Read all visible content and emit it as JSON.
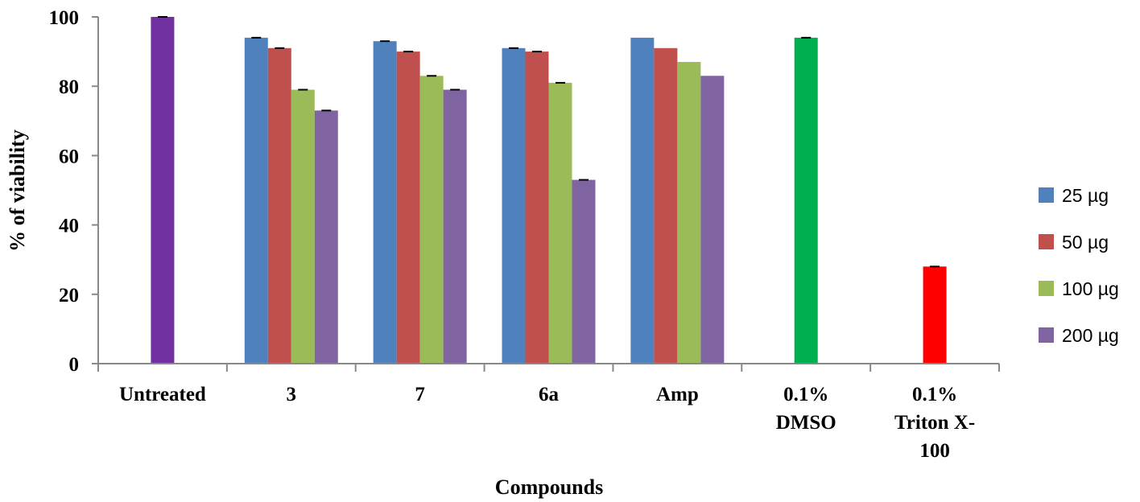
{
  "chart_data": {
    "type": "bar",
    "xlabel": "Compounds",
    "ylabel": "% of viability",
    "ylim": [
      0,
      100
    ],
    "yticks": [
      0,
      20,
      40,
      60,
      80,
      100
    ],
    "categories": [
      [
        "Untreated"
      ],
      [
        "3"
      ],
      [
        "7"
      ],
      [
        "6a"
      ],
      [
        "Amp"
      ],
      [
        "0.1%",
        "DMSO"
      ],
      [
        "0.1%",
        "Triton X-",
        "100"
      ]
    ],
    "series": [
      {
        "name": "25 µg",
        "color": "#4f81bd",
        "values": [
          null,
          94,
          93,
          91,
          94,
          null,
          null
        ]
      },
      {
        "name": "50 µg",
        "color": "#c0504d",
        "values": [
          null,
          91,
          90,
          90,
          91,
          null,
          null
        ]
      },
      {
        "name": "100 µg",
        "color": "#9bbb59",
        "values": [
          null,
          79,
          83,
          81,
          87,
          null,
          null
        ]
      },
      {
        "name": "200 µg",
        "color": "#8064a2",
        "values": [
          null,
          73,
          79,
          53,
          83,
          null,
          null
        ]
      }
    ],
    "single_bars": [
      {
        "category": "Untreated",
        "value": 100,
        "color": "#7030a0"
      },
      {
        "category": "0.1%\nDMSO",
        "value": 94,
        "color": "#00b050"
      },
      {
        "category": "0.1%\nTriton X-\n100",
        "value": 28,
        "color": "#ff0000"
      }
    ],
    "legend_position": "right",
    "grid": false
  }
}
